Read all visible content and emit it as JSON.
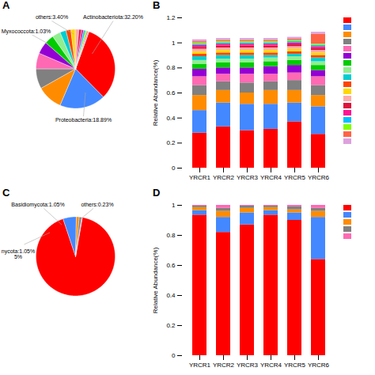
{
  "chart_data": [
    {
      "type": "pie",
      "title": "A",
      "values": [
        32.2,
        18.89,
        10.5,
        8.2,
        6.5,
        5.0,
        3.8,
        3.4,
        2.5,
        2.0,
        1.8,
        1.5,
        1.03,
        0.9,
        0.8,
        0.6,
        0.5,
        0.36
      ],
      "colors": [
        "#FF0000",
        "#4488FF",
        "#FF8C00",
        "#808080",
        "#FF69B4",
        "#9400D3",
        "#00CC00",
        "#90EE90",
        "#00CED1",
        "#FF4500",
        "#FFD700",
        "#FFAAAA",
        "#DC143C",
        "#FF1493",
        "#00BFFF",
        "#7FFF00",
        "#FF6347",
        "#DDA0DD"
      ],
      "annotations": [
        "Actinobacteriota:32.20%",
        "Proteobacteria:18.89%",
        "others:3.40%",
        "Myxococcota:1.03%"
      ]
    },
    {
      "type": "bar",
      "title": "B",
      "stacked": true,
      "categories": [
        "YRCR1",
        "YRCR2",
        "YRCR3",
        "YRCR4",
        "YRCR5",
        "YRCR6"
      ],
      "y_label": "Relative Abundance(%)",
      "ylim": [
        0,
        1.2
      ],
      "yticks": [
        0,
        0.2,
        0.4,
        0.6,
        0.8,
        1,
        1.2
      ],
      "grid": false,
      "legend": "right",
      "series": [
        {
          "color": "#FF0000",
          "values": [
            0.28,
            0.33,
            0.3,
            0.31,
            0.37,
            0.27
          ]
        },
        {
          "color": "#4488FF",
          "values": [
            0.18,
            0.19,
            0.21,
            0.2,
            0.15,
            0.22
          ]
        },
        {
          "color": "#FF8C00",
          "values": [
            0.12,
            0.1,
            0.09,
            0.11,
            0.1,
            0.09
          ]
        },
        {
          "color": "#808080",
          "values": [
            0.08,
            0.07,
            0.08,
            0.07,
            0.08,
            0.08
          ]
        },
        {
          "color": "#FF69B4",
          "values": [
            0.07,
            0.06,
            0.07,
            0.06,
            0.06,
            0.07
          ]
        },
        {
          "color": "#9400D3",
          "values": [
            0.06,
            0.05,
            0.05,
            0.06,
            0.06,
            0.05
          ]
        },
        {
          "color": "#00CC00",
          "values": [
            0.04,
            0.04,
            0.04,
            0.04,
            0.04,
            0.04
          ]
        },
        {
          "color": "#90EE90",
          "values": [
            0.03,
            0.03,
            0.03,
            0.03,
            0.03,
            0.03
          ]
        },
        {
          "color": "#00CED1",
          "values": [
            0.03,
            0.03,
            0.03,
            0.02,
            0.02,
            0.03
          ]
        },
        {
          "color": "#FF4500",
          "values": [
            0.02,
            0.02,
            0.02,
            0.02,
            0.02,
            0.02
          ]
        },
        {
          "color": "#FFD700",
          "values": [
            0.02,
            0.02,
            0.02,
            0.02,
            0.02,
            0.02
          ]
        },
        {
          "color": "#FFAAAA",
          "values": [
            0.02,
            0.02,
            0.02,
            0.02,
            0.02,
            0.02
          ]
        },
        {
          "color": "#DC143C",
          "values": [
            0.015,
            0.015,
            0.015,
            0.015,
            0.015,
            0.015
          ]
        },
        {
          "color": "#FF1493",
          "values": [
            0.015,
            0.015,
            0.015,
            0.015,
            0.015,
            0.015
          ]
        },
        {
          "color": "#00BFFF",
          "values": [
            0.01,
            0.01,
            0.01,
            0.01,
            0.01,
            0.01
          ]
        },
        {
          "color": "#7FFF00",
          "values": [
            0.01,
            0.01,
            0.01,
            0.01,
            0.01,
            0.01
          ]
        },
        {
          "color": "#FF6347",
          "values": [
            0.01,
            0.01,
            0.01,
            0.01,
            0.01,
            0.08
          ]
        },
        {
          "color": "#DDA0DD",
          "values": [
            0.015,
            0.015,
            0.015,
            0.015,
            0.015,
            0.015
          ]
        }
      ]
    },
    {
      "type": "pie",
      "title": "C",
      "values": [
        93.0,
        5.5,
        1.2,
        1.05,
        0.23
      ],
      "colors": [
        "#FF0000",
        "#4488FF",
        "#FF8C00",
        "#808080",
        "#FF69B4"
      ],
      "annotations": [
        "Basidiomycota:1.05%",
        "others:0.23%",
        "nycota:1.05%\n5%"
      ]
    },
    {
      "type": "bar",
      "title": "D",
      "stacked": true,
      "categories": [
        "YRCR1",
        "YRCR2",
        "YRCR3",
        "YRCR4",
        "YRCR5",
        "YRCR6"
      ],
      "y_label": "Relative Abundance(%)",
      "ylim": [
        0,
        1
      ],
      "yticks": [
        0,
        0.2,
        0.4,
        0.6,
        0.8,
        1
      ],
      "grid": false,
      "legend": "right",
      "series": [
        {
          "color": "#FF0000",
          "values": [
            0.935,
            0.82,
            0.87,
            0.935,
            0.9,
            0.64
          ]
        },
        {
          "color": "#4488FF",
          "values": [
            0.03,
            0.1,
            0.08,
            0.03,
            0.05,
            0.28
          ]
        },
        {
          "color": "#FF8C00",
          "values": [
            0.02,
            0.04,
            0.03,
            0.02,
            0.02,
            0.04
          ]
        },
        {
          "color": "#808080",
          "values": [
            0.01,
            0.02,
            0.015,
            0.01,
            0.02,
            0.02
          ]
        },
        {
          "color": "#FF69B4",
          "values": [
            0.005,
            0.02,
            0.005,
            0.005,
            0.01,
            0.02
          ]
        }
      ]
    }
  ]
}
